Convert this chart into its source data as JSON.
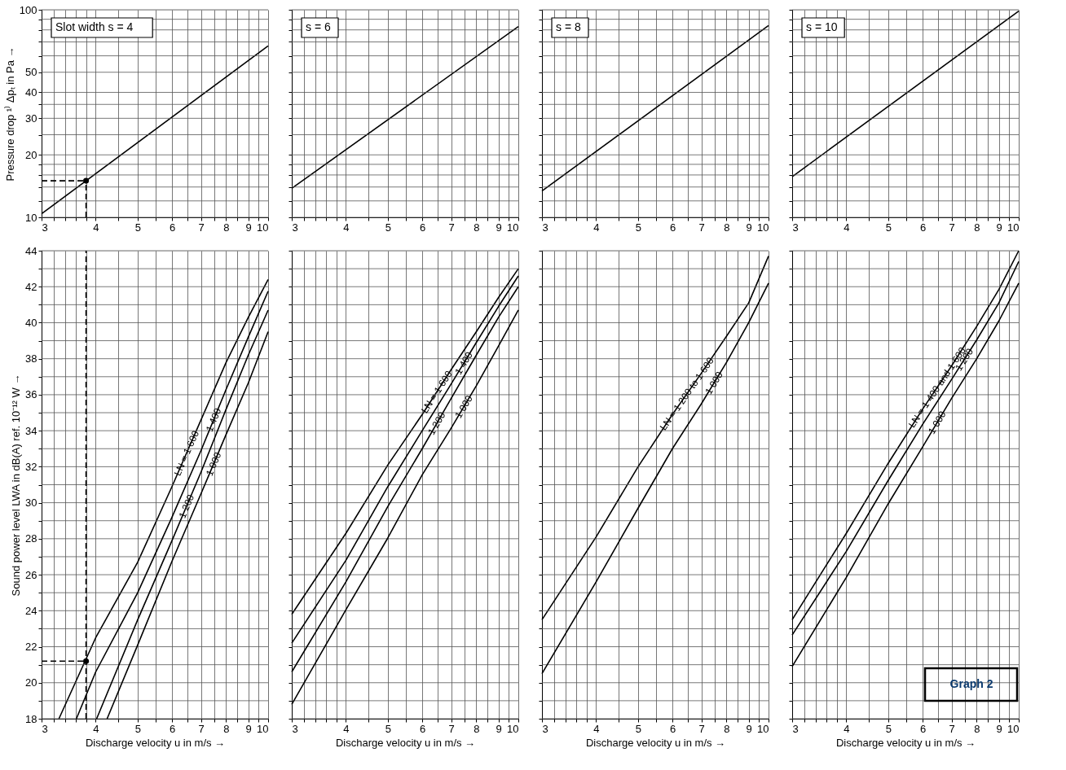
{
  "chart_data": [
    {
      "type": "line",
      "title": "Slot width s = 4",
      "ylabel": "Pressure drop ¹⁾ Δpₜ in Pa →",
      "log": "xy",
      "grid": true,
      "line_style": "solid",
      "xlim": [
        3,
        10
      ],
      "xticks": [
        3,
        {
          "value": 3.2,
          "label": null
        },
        {
          "value": 3.4,
          "label": null
        },
        {
          "value": 3.6,
          "label": null
        },
        {
          "value": 3.8,
          "label": null
        },
        4,
        {
          "value": 4.5,
          "label": null
        },
        5,
        {
          "value": 5.5,
          "label": null
        },
        6,
        {
          "value": 6.5,
          "label": null
        },
        7,
        {
          "value": 7.5,
          "label": null
        },
        8,
        {
          "value": 8.5,
          "label": null
        },
        9,
        {
          "value": 9.5,
          "label": null
        },
        10
      ],
      "ylim": [
        10,
        100
      ],
      "yticks": [
        10,
        {
          "value": 12,
          "label": null
        },
        {
          "value": 14,
          "label": null
        },
        {
          "value": 16,
          "label": null
        },
        {
          "value": 18,
          "label": null
        },
        20,
        {
          "value": 25,
          "label": null
        },
        30,
        {
          "value": 35,
          "label": null
        },
        40,
        50,
        {
          "value": 60,
          "label": null
        },
        {
          "value": 70,
          "label": null
        },
        {
          "value": 80,
          "label": null
        },
        {
          "value": 90,
          "label": null
        },
        100
      ],
      "series": [
        {
          "color": "#000000",
          "x": [
            3,
            10
          ],
          "values": [
            10.4,
            67
          ]
        },
        {
          "type": "line",
          "color": "#000000",
          "line_style": "dashed",
          "x": [
            3.8,
            3.8
          ],
          "values": [
            10,
            15
          ]
        },
        {
          "type": "line",
          "color": "#000000",
          "line_style": "dashed",
          "x": [
            3,
            3.8
          ],
          "values": [
            15,
            15
          ]
        },
        {
          "type": "scatter",
          "marker": "circle",
          "color": "#000000",
          "x": [
            3.8
          ],
          "values": [
            15
          ]
        }
      ]
    },
    {
      "type": "line",
      "title": "s = 6",
      "log": "xy",
      "grid": true,
      "tick_labels": "x",
      "line_style": "solid",
      "xlim": [
        3,
        10
      ],
      "xticks": [
        3,
        {
          "value": 3.2,
          "label": null
        },
        {
          "value": 3.4,
          "label": null
        },
        {
          "value": 3.6,
          "label": null
        },
        {
          "value": 3.8,
          "label": null
        },
        4,
        {
          "value": 4.5,
          "label": null
        },
        5,
        {
          "value": 5.5,
          "label": null
        },
        6,
        {
          "value": 6.5,
          "label": null
        },
        7,
        {
          "value": 7.5,
          "label": null
        },
        8,
        {
          "value": 8.5,
          "label": null
        },
        9,
        {
          "value": 9.5,
          "label": null
        },
        10
      ],
      "ylim": [
        10,
        100
      ],
      "yticks": [
        10,
        {
          "value": 12,
          "label": null
        },
        {
          "value": 14,
          "label": null
        },
        {
          "value": 16,
          "label": null
        },
        {
          "value": 18,
          "label": null
        },
        20,
        {
          "value": 25,
          "label": null
        },
        30,
        {
          "value": 35,
          "label": null
        },
        40,
        50,
        {
          "value": 60,
          "label": null
        },
        {
          "value": 70,
          "label": null
        },
        {
          "value": 80,
          "label": null
        },
        {
          "value": 90,
          "label": null
        },
        100
      ],
      "series": [
        {
          "color": "#000000",
          "x": [
            3,
            10
          ],
          "values": [
            13.8,
            83
          ]
        }
      ]
    },
    {
      "type": "line",
      "title": "s = 8",
      "log": "xy",
      "grid": true,
      "tick_labels": "x",
      "line_style": "solid",
      "xlim": [
        3,
        10
      ],
      "xticks": [
        3,
        {
          "value": 3.2,
          "label": null
        },
        {
          "value": 3.4,
          "label": null
        },
        {
          "value": 3.6,
          "label": null
        },
        {
          "value": 3.8,
          "label": null
        },
        4,
        {
          "value": 4.5,
          "label": null
        },
        5,
        {
          "value": 5.5,
          "label": null
        },
        6,
        {
          "value": 6.5,
          "label": null
        },
        7,
        {
          "value": 7.5,
          "label": null
        },
        8,
        {
          "value": 8.5,
          "label": null
        },
        9,
        {
          "value": 9.5,
          "label": null
        },
        10
      ],
      "ylim": [
        10,
        100
      ],
      "yticks": [
        10,
        {
          "value": 12,
          "label": null
        },
        {
          "value": 14,
          "label": null
        },
        {
          "value": 16,
          "label": null
        },
        {
          "value": 18,
          "label": null
        },
        20,
        {
          "value": 25,
          "label": null
        },
        30,
        {
          "value": 35,
          "label": null
        },
        40,
        50,
        {
          "value": 60,
          "label": null
        },
        {
          "value": 70,
          "label": null
        },
        {
          "value": 80,
          "label": null
        },
        {
          "value": 90,
          "label": null
        },
        100
      ],
      "series": [
        {
          "color": "#000000",
          "x": [
            3,
            10
          ],
          "values": [
            13.4,
            84
          ]
        }
      ]
    },
    {
      "type": "line",
      "title": "s = 10",
      "log": "xy",
      "grid": true,
      "tick_labels": "x",
      "line_style": "solid",
      "xlim": [
        3,
        10
      ],
      "xticks": [
        3,
        {
          "value": 3.2,
          "label": null
        },
        {
          "value": 3.4,
          "label": null
        },
        {
          "value": 3.6,
          "label": null
        },
        {
          "value": 3.8,
          "label": null
        },
        4,
        {
          "value": 4.5,
          "label": null
        },
        5,
        {
          "value": 5.5,
          "label": null
        },
        6,
        {
          "value": 6.5,
          "label": null
        },
        7,
        {
          "value": 7.5,
          "label": null
        },
        8,
        {
          "value": 8.5,
          "label": null
        },
        9,
        {
          "value": 9.5,
          "label": null
        },
        10
      ],
      "ylim": [
        10,
        100
      ],
      "yticks": [
        10,
        {
          "value": 12,
          "label": null
        },
        {
          "value": 14,
          "label": null
        },
        {
          "value": 16,
          "label": null
        },
        {
          "value": 18,
          "label": null
        },
        20,
        {
          "value": 25,
          "label": null
        },
        30,
        {
          "value": 35,
          "label": null
        },
        40,
        50,
        {
          "value": 60,
          "label": null
        },
        {
          "value": 70,
          "label": null
        },
        {
          "value": 80,
          "label": null
        },
        {
          "value": 90,
          "label": null
        },
        100
      ],
      "series": [
        {
          "color": "#000000",
          "x": [
            3,
            10
          ],
          "values": [
            15.7,
            98.6
          ]
        }
      ]
    },
    {
      "type": "line",
      "xlabel": "Discharge velocity u in m/s →",
      "ylabel": "Sound power level LWA in dB(A) ref. 10⁻¹² W →",
      "log": "x",
      "grid": true,
      "line_style": "solid",
      "xlim": [
        3,
        10
      ],
      "xticks": [
        3,
        {
          "value": 3.2,
          "label": null
        },
        {
          "value": 3.4,
          "label": null
        },
        {
          "value": 3.6,
          "label": null
        },
        {
          "value": 3.8,
          "label": null
        },
        4,
        {
          "value": 4.5,
          "label": null
        },
        5,
        {
          "value": 5.5,
          "label": null
        },
        6,
        {
          "value": 6.5,
          "label": null
        },
        7,
        {
          "value": 7.5,
          "label": null
        },
        8,
        {
          "value": 8.5,
          "label": null
        },
        9,
        {
          "value": 9.5,
          "label": null
        },
        10
      ],
      "ylim": [
        18,
        44
      ],
      "yticks": [
        18,
        {
          "value": 19,
          "label": null
        },
        20,
        {
          "value": 21,
          "label": null
        },
        22,
        {
          "value": 23,
          "label": null
        },
        24,
        {
          "value": 25,
          "label": null
        },
        26,
        {
          "value": 27,
          "label": null
        },
        28,
        {
          "value": 29,
          "label": null
        },
        30,
        {
          "value": 31,
          "label": null
        },
        32,
        {
          "value": 33,
          "label": null
        },
        34,
        {
          "value": 35,
          "label": null
        },
        36,
        {
          "value": 37,
          "label": null
        },
        38,
        {
          "value": 39,
          "label": null
        },
        40,
        {
          "value": 41,
          "label": null
        },
        42,
        {
          "value": 43,
          "label": null
        },
        44
      ],
      "series": [
        {
          "name": "LN = 1 600",
          "color": "#000000",
          "x": [
            3.29,
            4,
            5,
            6,
            7,
            8,
            9,
            10
          ],
          "values": [
            18,
            22.5,
            26.7,
            30.9,
            34.6,
            37.8,
            40.3,
            42.4
          ]
        },
        {
          "name": "1 400",
          "color": "#000000",
          "x": [
            3.61,
            4,
            5,
            6,
            7,
            8,
            9,
            10
          ],
          "values": [
            18,
            20.6,
            25.0,
            29.2,
            32.9,
            36.3,
            39.2,
            41.75
          ]
        },
        {
          "name": "1 200",
          "color": "#000000",
          "x": [
            4.02,
            5,
            6,
            7,
            8,
            9,
            10
          ],
          "values": [
            18,
            23.5,
            27.9,
            31.7,
            35.2,
            38.2,
            40.7
          ]
        },
        {
          "name": "1 000",
          "color": "#000000",
          "x": [
            4.25,
            5,
            6,
            7,
            8,
            9,
            10
          ],
          "values": [
            18,
            22.1,
            26.75,
            30.5,
            33.8,
            36.65,
            39.5
          ]
        },
        {
          "type": "line",
          "color": "#000000",
          "line_style": "dashed",
          "x": [
            3.8,
            3.8
          ],
          "values": [
            18,
            44
          ]
        },
        {
          "type": "line",
          "color": "#000000",
          "line_style": "dashed",
          "x": [
            3,
            3.8
          ],
          "values": [
            21.2,
            21.2
          ]
        },
        {
          "type": "scatter",
          "marker": "circle",
          "color": "#000000",
          "x": [
            3.8
          ],
          "values": [
            21.2
          ]
        }
      ]
    },
    {
      "type": "line",
      "xlabel": "Discharge velocity u in m/s →",
      "log": "x",
      "grid": true,
      "tick_labels": "x",
      "line_style": "solid",
      "xlim": [
        3,
        10
      ],
      "xticks": [
        3,
        {
          "value": 3.2,
          "label": null
        },
        {
          "value": 3.4,
          "label": null
        },
        {
          "value": 3.6,
          "label": null
        },
        {
          "value": 3.8,
          "label": null
        },
        4,
        {
          "value": 4.5,
          "label": null
        },
        5,
        {
          "value": 5.5,
          "label": null
        },
        6,
        {
          "value": 6.5,
          "label": null
        },
        7,
        {
          "value": 7.5,
          "label": null
        },
        8,
        {
          "value": 8.5,
          "label": null
        },
        9,
        {
          "value": 9.5,
          "label": null
        },
        10
      ],
      "ylim": [
        18,
        44
      ],
      "yticks": [
        18,
        {
          "value": 19,
          "label": null
        },
        20,
        {
          "value": 21,
          "label": null
        },
        22,
        {
          "value": 23,
          "label": null
        },
        24,
        {
          "value": 25,
          "label": null
        },
        26,
        {
          "value": 27,
          "label": null
        },
        28,
        {
          "value": 29,
          "label": null
        },
        30,
        {
          "value": 31,
          "label": null
        },
        32,
        {
          "value": 33,
          "label": null
        },
        34,
        {
          "value": 35,
          "label": null
        },
        36,
        {
          "value": 37,
          "label": null
        },
        38,
        {
          "value": 39,
          "label": null
        },
        40,
        {
          "value": 41,
          "label": null
        },
        42,
        {
          "value": 43,
          "label": null
        },
        44
      ],
      "series": [
        {
          "name": "LN = 1 600",
          "color": "#000000",
          "x": [
            3,
            4,
            5,
            6,
            7,
            8,
            9,
            10
          ],
          "values": [
            23.8,
            28.3,
            32.1,
            34.9,
            37.4,
            39.5,
            41.4,
            43.0
          ]
        },
        {
          "name": "1 400",
          "color": "#000000",
          "x": [
            3,
            4,
            5,
            6,
            7,
            8,
            9,
            10
          ],
          "values": [
            22.2,
            26.8,
            30.9,
            34.0,
            36.6,
            38.9,
            40.9,
            42.6
          ]
        },
        {
          "name": "1 200",
          "color": "#000000",
          "x": [
            3,
            4,
            5,
            6,
            7,
            8,
            9,
            10
          ],
          "values": [
            20.6,
            25.6,
            29.8,
            33.0,
            35.8,
            38.2,
            40.3,
            42.0
          ]
        },
        {
          "name": "1 000",
          "color": "#000000",
          "x": [
            3,
            4,
            5,
            6,
            7,
            8,
            9,
            10
          ],
          "values": [
            18.8,
            24.05,
            28.05,
            31.55,
            34.15,
            36.5,
            38.7,
            40.7
          ]
        }
      ]
    },
    {
      "type": "line",
      "xlabel": "Discharge velocity u in m/s →",
      "log": "x",
      "grid": true,
      "tick_labels": "x",
      "line_style": "solid",
      "xlim": [
        3,
        10
      ],
      "xticks": [
        3,
        {
          "value": 3.2,
          "label": null
        },
        {
          "value": 3.4,
          "label": null
        },
        {
          "value": 3.6,
          "label": null
        },
        {
          "value": 3.8,
          "label": null
        },
        4,
        {
          "value": 4.5,
          "label": null
        },
        5,
        {
          "value": 5.5,
          "label": null
        },
        6,
        {
          "value": 6.5,
          "label": null
        },
        7,
        {
          "value": 7.5,
          "label": null
        },
        8,
        {
          "value": 8.5,
          "label": null
        },
        9,
        {
          "value": 9.5,
          "label": null
        },
        10
      ],
      "ylim": [
        18,
        44
      ],
      "yticks": [
        18,
        {
          "value": 19,
          "label": null
        },
        20,
        {
          "value": 21,
          "label": null
        },
        22,
        {
          "value": 23,
          "label": null
        },
        24,
        {
          "value": 25,
          "label": null
        },
        26,
        {
          "value": 27,
          "label": null
        },
        28,
        {
          "value": 29,
          "label": null
        },
        30,
        {
          "value": 31,
          "label": null
        },
        32,
        {
          "value": 33,
          "label": null
        },
        34,
        {
          "value": 35,
          "label": null
        },
        36,
        {
          "value": 37,
          "label": null
        },
        38,
        {
          "value": 39,
          "label": null
        },
        40,
        {
          "value": 41,
          "label": null
        },
        42,
        {
          "value": 43,
          "label": null
        },
        44
      ],
      "series": [
        {
          "name": "LN = 1 200 to 1 600",
          "color": "#000000",
          "x": [
            3,
            4,
            5,
            6,
            7,
            8,
            9,
            10
          ],
          "values": [
            23.5,
            28.1,
            32.0,
            34.9,
            37.2,
            39.25,
            41.1,
            43.7
          ]
        },
        {
          "name": "1 000",
          "color": "#000000",
          "x": [
            3,
            4,
            5,
            6,
            7,
            8,
            9,
            10
          ],
          "values": [
            20.5,
            25.6,
            29.7,
            33.0,
            35.5,
            37.8,
            40.0,
            42.2
          ]
        }
      ]
    },
    {
      "type": "line",
      "xlabel": "Discharge velocity u in m/s →",
      "log": "x",
      "grid": true,
      "tick_labels": "x",
      "line_style": "solid",
      "annotations": [
        "Graph 2"
      ],
      "xlim": [
        3,
        10
      ],
      "xticks": [
        3,
        {
          "value": 3.2,
          "label": null
        },
        {
          "value": 3.4,
          "label": null
        },
        {
          "value": 3.6,
          "label": null
        },
        {
          "value": 3.8,
          "label": null
        },
        4,
        {
          "value": 4.5,
          "label": null
        },
        5,
        {
          "value": 5.5,
          "label": null
        },
        6,
        {
          "value": 6.5,
          "label": null
        },
        7,
        {
          "value": 7.5,
          "label": null
        },
        8,
        {
          "value": 8.5,
          "label": null
        },
        9,
        {
          "value": 9.5,
          "label": null
        },
        10
      ],
      "ylim": [
        18,
        44
      ],
      "yticks": [
        18,
        {
          "value": 19,
          "label": null
        },
        20,
        {
          "value": 21,
          "label": null
        },
        22,
        {
          "value": 23,
          "label": null
        },
        24,
        {
          "value": 25,
          "label": null
        },
        26,
        {
          "value": 27,
          "label": null
        },
        28,
        {
          "value": 29,
          "label": null
        },
        30,
        {
          "value": 31,
          "label": null
        },
        32,
        {
          "value": 33,
          "label": null
        },
        34,
        {
          "value": 35,
          "label": null
        },
        36,
        {
          "value": 37,
          "label": null
        },
        38,
        {
          "value": 39,
          "label": null
        },
        40,
        {
          "value": 41,
          "label": null
        },
        42,
        {
          "value": 43,
          "label": null
        },
        44
      ],
      "series": [
        {
          "name": "LN = 1 400 and 1 600",
          "color": "#000000",
          "x": [
            3,
            4,
            5,
            6,
            7,
            8,
            9,
            10
          ],
          "values": [
            23.5,
            28.3,
            32.2,
            35.2,
            37.6,
            39.8,
            41.85,
            44.0
          ]
        },
        {
          "name": "1 200",
          "color": "#000000",
          "x": [
            3,
            4,
            5,
            6,
            7,
            8,
            9,
            10
          ],
          "values": [
            22.65,
            27.3,
            31.25,
            34.35,
            36.85,
            39.05,
            41.1,
            43.4
          ]
        },
        {
          "name": "1 000",
          "color": "#000000",
          "x": [
            3,
            4,
            5,
            6,
            7,
            8,
            9,
            10
          ],
          "values": [
            20.9,
            25.85,
            29.95,
            33.1,
            35.8,
            38.0,
            40.1,
            42.2
          ]
        }
      ]
    }
  ]
}
